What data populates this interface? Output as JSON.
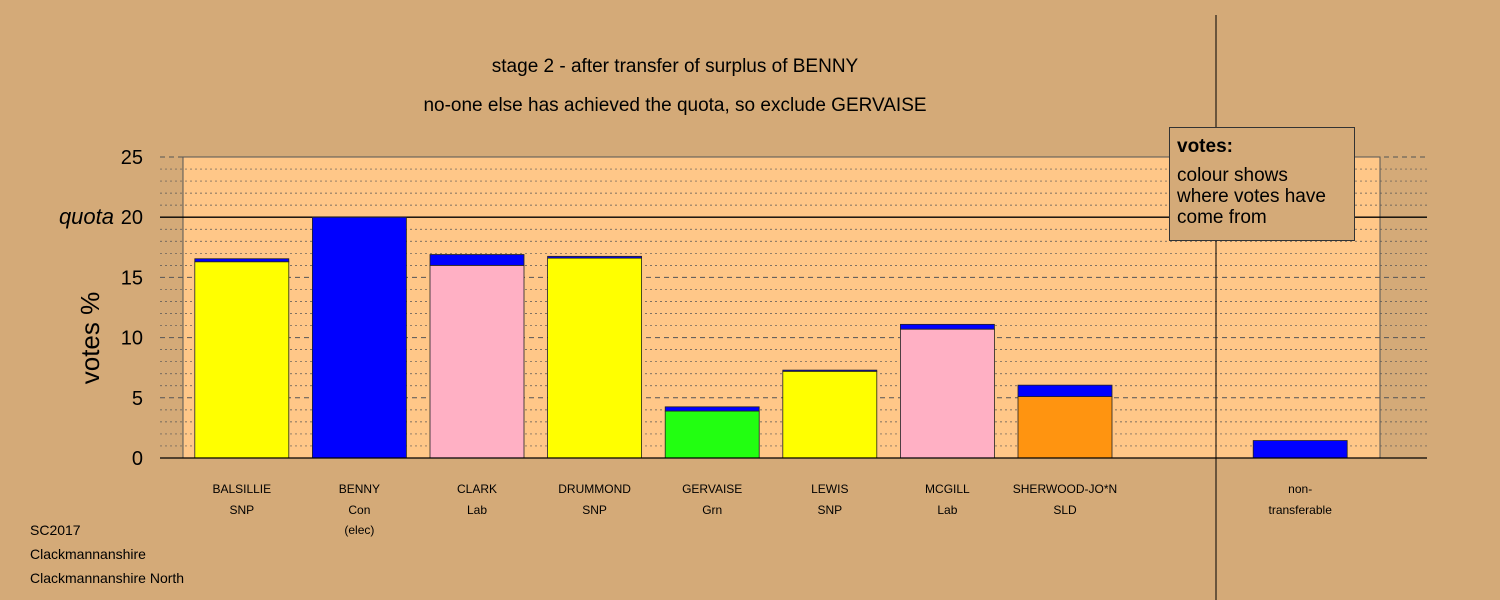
{
  "chart_data": {
    "type": "bar",
    "title": "stage 2 - after transfer of surplus of BENNY",
    "subtitle": "no-one else has achieved the quota, so exclude GERVAISE",
    "ylabel": "votes %",
    "ylim": [
      0,
      25
    ],
    "yticks": [
      0,
      5,
      10,
      15,
      20,
      25
    ],
    "quota": {
      "label": "quota",
      "value": 20
    },
    "stacked": true,
    "grid": true,
    "candidates": [
      {
        "name": "BALSILLIE",
        "party": "SNP",
        "note": "",
        "segments": [
          {
            "color": "#ffff00",
            "value": 16.3
          },
          {
            "color": "#0000ff",
            "value": 0.25
          }
        ]
      },
      {
        "name": "BENNY",
        "party": "Con",
        "note": "(elec)",
        "segments": [
          {
            "color": "#0000ff",
            "value": 20.0
          }
        ]
      },
      {
        "name": "CLARK",
        "party": "Lab",
        "note": "",
        "segments": [
          {
            "color": "#ffb0c4",
            "value": 16.0
          },
          {
            "color": "#0000ff",
            "value": 0.9
          }
        ]
      },
      {
        "name": "DRUMMOND",
        "party": "SNP",
        "note": "",
        "segments": [
          {
            "color": "#ffff00",
            "value": 16.6
          },
          {
            "color": "#0000ff",
            "value": 0.15
          }
        ]
      },
      {
        "name": "GERVAISE",
        "party": "Grn",
        "note": "",
        "segments": [
          {
            "color": "#22ff11",
            "value": 3.9
          },
          {
            "color": "#0000ff",
            "value": 0.35
          }
        ]
      },
      {
        "name": "LEWIS",
        "party": "SNP",
        "note": "",
        "segments": [
          {
            "color": "#ffff00",
            "value": 7.2
          },
          {
            "color": "#0000ff",
            "value": 0.1
          }
        ]
      },
      {
        "name": "MCGILL",
        "party": "Lab",
        "note": "",
        "segments": [
          {
            "color": "#ffb0c4",
            "value": 10.7
          },
          {
            "color": "#0000ff",
            "value": 0.4
          }
        ]
      },
      {
        "name": "SHERWOOD-JO*N",
        "party": "SLD",
        "note": "",
        "segments": [
          {
            "color": "#ff9410",
            "value": 5.1
          },
          {
            "color": "#0000ff",
            "value": 0.95
          }
        ]
      }
    ],
    "nontransferable": {
      "name": "non-",
      "party": "transferable",
      "segments": [
        {
          "color": "#0000ff",
          "value": 1.45
        }
      ]
    },
    "legend": {
      "title": "votes:",
      "text": "colour shows where votes have come from",
      "position": "top-right"
    }
  },
  "footer": {
    "line1": "SC2017",
    "line2": "Clackmannanshire",
    "line3": "Clackmannanshire North"
  },
  "colors": {
    "background": "#d4aa78",
    "plot_area": "#ffc788"
  }
}
